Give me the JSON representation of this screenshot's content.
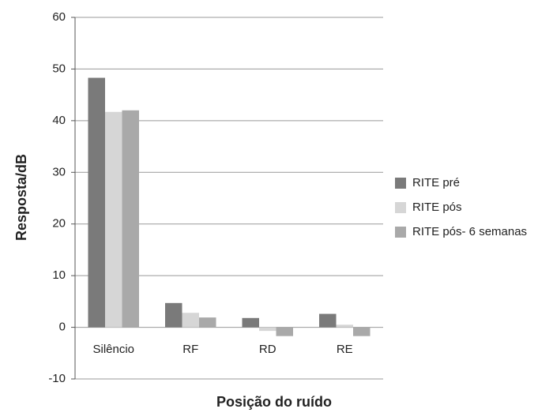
{
  "chart_data": {
    "type": "bar",
    "x_label": "Posição do ruído",
    "y_label": "Resposta/dB",
    "categories": [
      "Silêncio",
      "RF",
      "RD",
      "RE"
    ],
    "series": [
      {
        "name": "RITE pré",
        "color": "#7a7a7a",
        "values": [
          48.3,
          4.7,
          1.8,
          2.6
        ]
      },
      {
        "name": "RITE pós",
        "color": "#d6d6d6",
        "values": [
          41.7,
          2.8,
          -0.7,
          0.5
        ]
      },
      {
        "name": "RITE pós- 6 semanas",
        "color": "#a9a9a9",
        "values": [
          42.0,
          1.9,
          -1.7,
          -1.7
        ]
      }
    ],
    "ylim": [
      -10,
      60
    ],
    "yticks": [
      -10,
      0,
      10,
      20,
      30,
      40,
      50,
      60
    ],
    "grid": true
  }
}
